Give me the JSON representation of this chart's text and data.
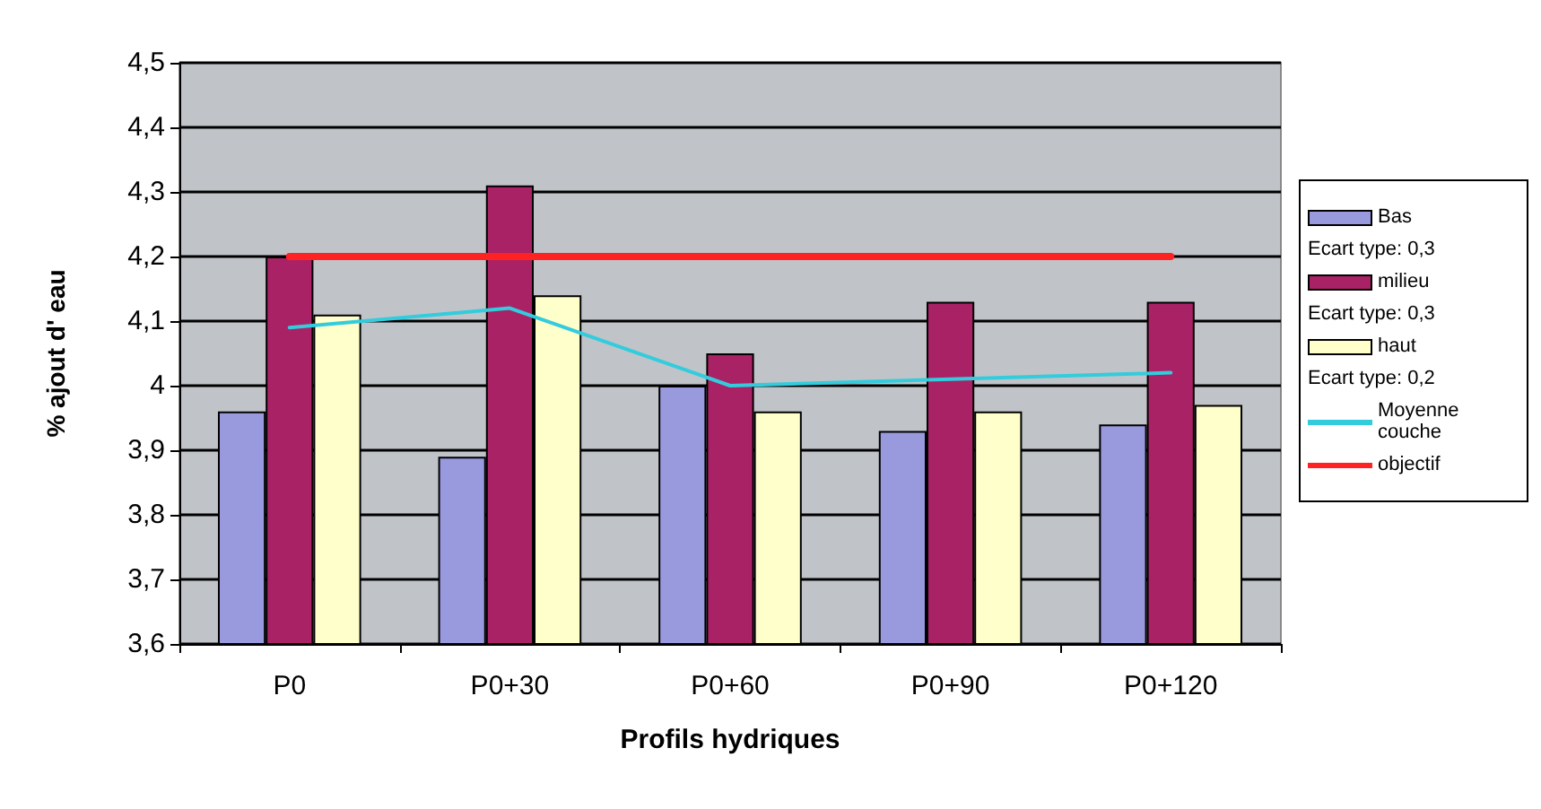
{
  "chart_data": {
    "type": "bar",
    "xlabel": "Profils hydriques",
    "ylabel": "% ajout d' eau",
    "categories": [
      "P0",
      "P0+30",
      "P0+60",
      "P0+90",
      "P0+120"
    ],
    "series": [
      {
        "name": "Bas",
        "color": "#9999dd",
        "values": [
          3.96,
          3.89,
          4.0,
          3.93,
          3.94
        ]
      },
      {
        "name": "milieu",
        "color": "#aa2266",
        "values": [
          4.2,
          4.31,
          4.05,
          4.13,
          4.13
        ]
      },
      {
        "name": "haut",
        "color": "#ffffcc",
        "values": [
          4.11,
          4.14,
          3.96,
          3.96,
          3.97
        ]
      },
      {
        "name": "Moyenne couche",
        "type": "line",
        "color": "#33ccdd",
        "values": [
          4.09,
          4.12,
          4.0,
          4.01,
          4.02
        ]
      },
      {
        "name": "objectif",
        "type": "line",
        "color": "#ff2222",
        "values": [
          4.2,
          4.2,
          4.2,
          4.2,
          4.2
        ]
      }
    ],
    "annotations": [
      "Ecart type: 0,3",
      "Ecart type: 0,3",
      "Ecart type: 0,2"
    ],
    "ylim": [
      3.6,
      4.5
    ],
    "yticks": [
      {
        "value": 3.6,
        "label": "3,6"
      },
      {
        "value": 3.7,
        "label": "3,7"
      },
      {
        "value": 3.8,
        "label": "3,8"
      },
      {
        "value": 3.9,
        "label": "3,9"
      },
      4,
      {
        "value": 4.1,
        "label": "4,1"
      },
      {
        "value": 4.2,
        "label": "4,2"
      },
      {
        "value": 4.3,
        "label": "4,3"
      },
      {
        "value": 4.4,
        "label": "4,4"
      },
      {
        "value": 4.5,
        "label": "4,5"
      }
    ],
    "grid": "y",
    "legend": "right",
    "marker": "none",
    "line_style": "solid"
  }
}
